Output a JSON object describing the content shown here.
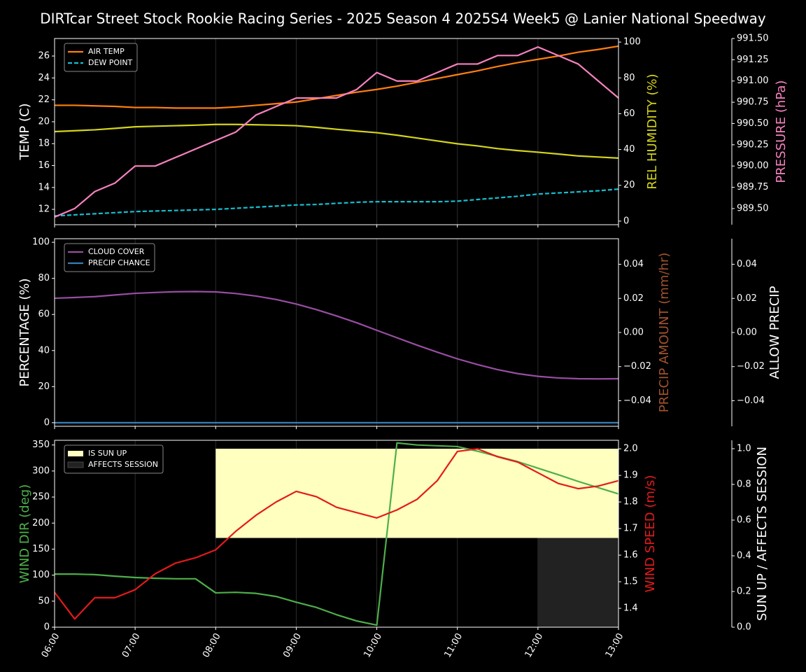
{
  "title": "DIRTcar Street Stock Rookie Racing Series - 2025 Season 4 2025S4 Week5 @ Lanier National Speedway",
  "chart_data": [
    {
      "type": "line",
      "legend": "upper left",
      "xgrid": true,
      "x": [
        6,
        6.25,
        6.5,
        6.75,
        7,
        7.25,
        7.5,
        7.75,
        8,
        8.25,
        8.5,
        8.75,
        9,
        9.25,
        9.5,
        9.75,
        10,
        10.25,
        10.5,
        10.75,
        11,
        11.25,
        11.5,
        11.75,
        12,
        12.25,
        12.5,
        12.75,
        13
      ],
      "xlim": [
        6,
        13
      ],
      "xticks": [
        6,
        7,
        8,
        9,
        10,
        11,
        12,
        13
      ],
      "ylabel": "TEMP (C)",
      "ylabel_color": "#ffffff",
      "ylim": [
        10.6,
        27.6
      ],
      "yticks": [
        12,
        14,
        16,
        18,
        20,
        22,
        24,
        26
      ],
      "y2label": "REL HUMIDITY (%)",
      "y2label_color": "#d4d41e",
      "y2lim": [
        -2,
        102
      ],
      "y2ticks": [
        0,
        20,
        40,
        60,
        80,
        100
      ],
      "y3label": "PRESSURE (hPa)",
      "y3label_color": "#f781bf",
      "y3lim": [
        989.31,
        991.5
      ],
      "y3ticks": [
        {
          "value": 989.5,
          "label": "989.50"
        },
        {
          "value": 989.75,
          "label": "989.75"
        },
        {
          "value": 990,
          "label": "990.00"
        },
        {
          "value": 990.25,
          "label": "990.25"
        },
        {
          "value": 990.5,
          "label": "990.50"
        },
        {
          "value": 990.75,
          "label": "990.75"
        },
        {
          "value": 991,
          "label": "991.00"
        },
        {
          "value": 991.25,
          "label": "991.25"
        },
        {
          "value": 991.5,
          "label": "991.50"
        }
      ],
      "series": [
        {
          "name": "AIR TEMP",
          "color": "#ff7f0e",
          "axis": "y",
          "in_legend": true,
          "linestyle": "solid",
          "values": [
            21.5,
            21.5,
            21.45,
            21.4,
            21.3,
            21.3,
            21.25,
            21.25,
            21.25,
            21.35,
            21.5,
            21.65,
            21.8,
            22.1,
            22.4,
            22.7,
            22.95,
            23.25,
            23.6,
            23.95,
            24.3,
            24.65,
            25.05,
            25.4,
            25.7,
            26.0,
            26.35,
            26.6,
            26.9
          ]
        },
        {
          "name": "DEW POINT",
          "color": "#17becf",
          "axis": "y",
          "in_legend": true,
          "linestyle": "dashed",
          "values": [
            11.4,
            11.5,
            11.6,
            11.7,
            11.8,
            11.85,
            11.9,
            11.95,
            12.0,
            12.1,
            12.2,
            12.3,
            12.4,
            12.45,
            12.55,
            12.65,
            12.7,
            12.7,
            12.7,
            12.7,
            12.75,
            12.9,
            13.05,
            13.2,
            13.4,
            13.5,
            13.6,
            13.7,
            13.85
          ]
        },
        {
          "name": "REL HUMIDITY",
          "color": "#d4d41e",
          "axis": "y2",
          "in_legend": false,
          "linestyle": "solid",
          "values": [
            50,
            50.5,
            51,
            51.8,
            52.7,
            53,
            53.3,
            53.6,
            54,
            54,
            53.8,
            53.6,
            53.3,
            52.4,
            51.3,
            50.3,
            49.4,
            48,
            46.4,
            44.8,
            43.2,
            42,
            40.5,
            39.4,
            38.5,
            37.5,
            36.4,
            35.8,
            35.2
          ]
        },
        {
          "name": "PRESSURE",
          "color": "#f781bf",
          "axis": "y3",
          "in_legend": false,
          "linestyle": "solid",
          "values": [
            989.4,
            989.5,
            989.7,
            989.8,
            990.0,
            990.0,
            990.1,
            990.2,
            990.3,
            990.4,
            990.6,
            990.7,
            990.8,
            990.8,
            990.8,
            990.9,
            991.1,
            991.0,
            991.0,
            991.1,
            991.2,
            991.2,
            991.3,
            991.3,
            991.4,
            991.3,
            991.2,
            991.0,
            990.8
          ]
        }
      ]
    },
    {
      "type": "line",
      "legend": "upper left",
      "xgrid": true,
      "x": [
        6,
        6.25,
        6.5,
        6.75,
        7,
        7.25,
        7.5,
        7.75,
        8,
        8.25,
        8.5,
        8.75,
        9,
        9.25,
        9.5,
        9.75,
        10,
        10.25,
        10.5,
        10.75,
        11,
        11.25,
        11.5,
        11.75,
        12,
        12.25,
        12.5,
        12.75,
        13
      ],
      "xlim": [
        6,
        13
      ],
      "xticks": [
        6,
        7,
        8,
        9,
        10,
        11,
        12,
        13
      ],
      "ylabel": "PERCENTAGE (%)",
      "ylabel_color": "#ffffff",
      "ylim": [
        -2,
        102
      ],
      "yticks": [
        0,
        20,
        40,
        60,
        80,
        100
      ],
      "y2label": "PRECIP AMOUNT (mm/hr)",
      "y2label_color": "#a0522d",
      "y2lim": [
        -0.055,
        0.055
      ],
      "y2ticks": [
        {
          "value": -0.04,
          "label": "−0.04"
        },
        {
          "value": -0.02,
          "label": "−0.02"
        },
        {
          "value": 0,
          "label": "0.00"
        },
        0.02,
        0.04
      ],
      "y3label": "ALLOW PRECIP",
      "y3label_color": "#ffffff",
      "y3lim": [
        -0.055,
        0.055
      ],
      "y3ticks": [
        {
          "value": -0.04,
          "label": "−0.04"
        },
        {
          "value": -0.02,
          "label": "−0.02"
        },
        {
          "value": 0,
          "label": "0.00"
        },
        0.02,
        0.04
      ],
      "series": [
        {
          "name": "CLOUD COVER",
          "color": "#984ea3",
          "axis": "y",
          "in_legend": true,
          "linestyle": "solid",
          "values": [
            69,
            69.4,
            69.9,
            70.8,
            71.7,
            72.2,
            72.6,
            72.7,
            72.5,
            71.6,
            70.2,
            68.3,
            65.8,
            62.7,
            59.2,
            55.4,
            51.2,
            47.1,
            43.0,
            39.1,
            35.4,
            32.2,
            29.4,
            27.2,
            25.7,
            24.8,
            24.4,
            24.3,
            24.4
          ]
        },
        {
          "name": "PRECIP CHANCE",
          "color": "#377eb8",
          "axis": "y",
          "in_legend": true,
          "linestyle": "solid",
          "values": [
            0,
            0,
            0,
            0,
            0,
            0,
            0,
            0,
            0,
            0,
            0,
            0,
            0,
            0,
            0,
            0,
            0,
            0,
            0,
            0,
            0,
            0,
            0,
            0,
            0,
            0,
            0,
            0,
            0
          ]
        }
      ]
    },
    {
      "type": "line",
      "legend": "upper left",
      "xgrid": true,
      "x": [
        6,
        6.25,
        6.5,
        6.75,
        7,
        7.25,
        7.5,
        7.75,
        8,
        8.25,
        8.5,
        8.75,
        9,
        9.25,
        9.5,
        9.75,
        10,
        10.25,
        10.5,
        10.75,
        11,
        11.25,
        11.5,
        11.75,
        12,
        12.25,
        12.5,
        12.75,
        13
      ],
      "xlim": [
        6,
        13
      ],
      "xticks": [
        {
          "value": 6,
          "label": "06:00"
        },
        {
          "value": 7,
          "label": "07:00"
        },
        {
          "value": 8,
          "label": "08:00"
        },
        {
          "value": 9,
          "label": "09:00"
        },
        {
          "value": 10,
          "label": "10:00"
        },
        {
          "value": 11,
          "label": "11:00"
        },
        {
          "value": 12,
          "label": "12:00"
        },
        {
          "value": 13,
          "label": "13:00"
        }
      ],
      "ylabel": "WIND DIR (deg)",
      "ylabel_color": "#4daf4a",
      "ylim": [
        0,
        359
      ],
      "yticks": [
        0,
        50,
        100,
        150,
        200,
        250,
        300,
        350
      ],
      "y2label": "WIND SPEED (m/s)",
      "y2label_color": "#e41a1c",
      "y2lim": [
        1.329,
        2.032
      ],
      "y2ticks": [
        1.4,
        1.5,
        1.6,
        1.7,
        1.8,
        1.9,
        {
          "value": 2,
          "label": "2.0"
        }
      ],
      "y3label": "SUN UP / AFFECTS SESSION",
      "y3label_color": "#ffffff",
      "y3lim": [
        0,
        1.047
      ],
      "y3ticks": [
        {
          "value": 0,
          "label": "0.0"
        },
        0.2,
        0.4,
        0.6,
        0.8,
        {
          "value": 1,
          "label": "1.0"
        }
      ],
      "series": [
        {
          "name": "IS SUN UP",
          "type": "area",
          "color": "#ffffc0",
          "axis": "y3",
          "in_legend": true,
          "base": 0.5,
          "values": [
            null,
            null,
            null,
            null,
            null,
            null,
            null,
            null,
            1,
            1,
            1,
            1,
            1,
            1,
            1,
            1,
            1,
            1,
            1,
            1,
            1,
            1,
            1,
            1,
            1,
            1,
            1,
            1,
            1
          ]
        },
        {
          "name": "AFFECTS SESSION",
          "type": "area",
          "color": "#222222",
          "axis": "y3",
          "in_legend": true,
          "base": 0,
          "values": [
            null,
            null,
            null,
            null,
            null,
            null,
            null,
            null,
            null,
            null,
            null,
            null,
            null,
            null,
            null,
            null,
            null,
            null,
            null,
            null,
            null,
            null,
            null,
            null,
            0.5,
            0.5,
            0.5,
            0.5,
            0.5
          ]
        },
        {
          "name": "WIND DIR",
          "color": "#4daf4a",
          "axis": "y",
          "in_legend": false,
          "linestyle": "solid",
          "values": [
            102,
            102,
            101,
            98,
            95.5,
            94,
            93,
            93,
            66,
            67,
            65,
            59,
            48,
            38,
            24,
            12,
            4,
            354,
            350,
            348.5,
            347,
            338,
            328,
            318,
            305.5,
            293,
            280,
            268,
            256
          ]
        },
        {
          "name": "WIND SPEED",
          "color": "#e41a1c",
          "axis": "y2",
          "in_legend": false,
          "linestyle": "solid",
          "values": [
            1.46,
            1.36,
            1.44,
            1.44,
            1.47,
            1.53,
            1.57,
            1.59,
            1.62,
            1.69,
            1.75,
            1.8,
            1.84,
            1.82,
            1.78,
            1.76,
            1.74,
            1.77,
            1.81,
            1.88,
            1.99,
            2.0,
            1.97,
            1.95,
            1.91,
            1.87,
            1.85,
            1.86,
            1.88
          ]
        }
      ]
    }
  ]
}
